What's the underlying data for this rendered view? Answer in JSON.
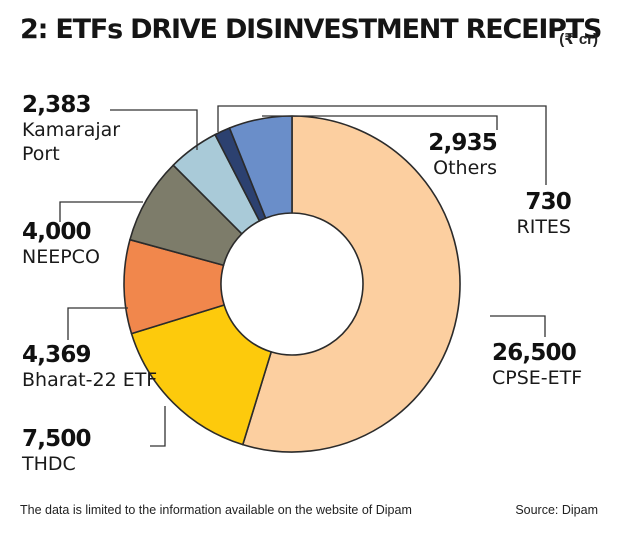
{
  "header": {
    "title": "2: ETFs DRIVE DISINVESTMENT RECEIPTS",
    "unit": "(₹ cr)"
  },
  "footer": {
    "note": "The data is limited to the information  available on the website of Dipam",
    "source": "Source: Dipam"
  },
  "chart_data": {
    "type": "pie",
    "style": "donut",
    "title": "2: ETFs DRIVE DISINVESTMENT RECEIPTS",
    "unit": "(₹ cr)",
    "slices": [
      {
        "label": "CPSE-ETF",
        "value": 26500,
        "value_text": "26,500",
        "color": "#fccfa0"
      },
      {
        "label": "THDC",
        "value": 7500,
        "value_text": "7,500",
        "color": "#fdca0c"
      },
      {
        "label": "Bharat-22 ETF",
        "value": 4369,
        "value_text": "4,369",
        "color": "#f1874c"
      },
      {
        "label": "NEEPCO",
        "value": 4000,
        "value_text": "4,000",
        "color": "#7d7c6a"
      },
      {
        "label": "Kamarajar Port",
        "value": 2383,
        "value_text": "2,383",
        "color": "#a9cad8"
      },
      {
        "label": "RITES",
        "value": 730,
        "value_text": "730",
        "color": "#2c4170"
      },
      {
        "label": "Others",
        "value": 2935,
        "value_text": "2,935",
        "color": "#6a8ec9"
      }
    ]
  }
}
